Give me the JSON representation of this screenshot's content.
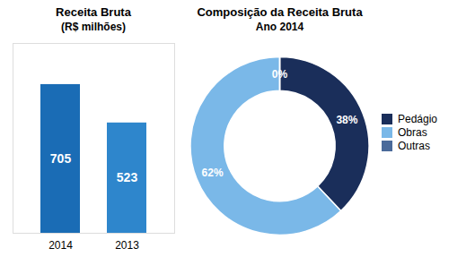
{
  "chart_data": [
    {
      "type": "bar",
      "title": "Receita Bruta",
      "subtitle": "(R$ milhões)",
      "categories": [
        "2014",
        "2013"
      ],
      "values": [
        705,
        523
      ],
      "colors": [
        "#1a6cb5",
        "#2e86cc"
      ],
      "ylim": [
        0,
        900
      ],
      "tick_labels": "x",
      "data_labels": true,
      "grid": false
    },
    {
      "type": "donut",
      "title": "Composição da Receita Bruta",
      "subtitle": "Ano 2014",
      "categories": [
        "Pedágio",
        "Obras",
        "Outras"
      ],
      "values": [
        38,
        62,
        0.001
      ],
      "value_labels": [
        "38%",
        "62%",
        "0%"
      ],
      "colors": [
        "#1a2e5a",
        "#7ab8e8",
        "#4a6a9a"
      ],
      "data_labels": true,
      "legend": "right"
    }
  ]
}
